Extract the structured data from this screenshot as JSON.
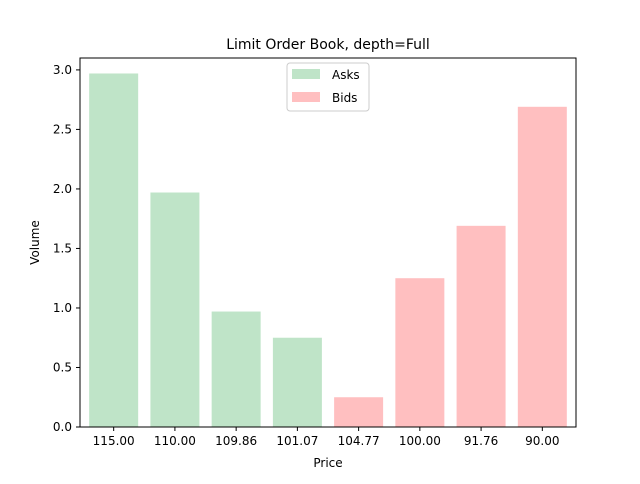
{
  "chart_data": {
    "type": "bar",
    "title": "Limit Order Book, depth=Full",
    "xlabel": "Price",
    "ylabel": "Volume",
    "categories": [
      "115.00",
      "110.00",
      "109.86",
      "101.07",
      "104.77",
      "100.00",
      "91.76",
      "90.00"
    ],
    "series": [
      {
        "name": "Asks",
        "color": "#bfe4c8",
        "values": [
          2.97,
          1.97,
          0.97,
          0.75,
          null,
          null,
          null,
          null
        ]
      },
      {
        "name": "Bids",
        "color": "#ffbfc0",
        "values": [
          null,
          null,
          null,
          null,
          0.25,
          1.25,
          1.69,
          2.69
        ]
      }
    ],
    "ylim": [
      0,
      3.1
    ],
    "yticks": [
      0.0,
      0.5,
      1.0,
      1.5,
      2.0,
      2.5,
      3.0
    ],
    "ytick_labels": [
      "0.0",
      "0.5",
      "1.0",
      "1.5",
      "2.0",
      "2.5",
      "3.0"
    ],
    "grid": false,
    "legend_position": "top-center"
  }
}
